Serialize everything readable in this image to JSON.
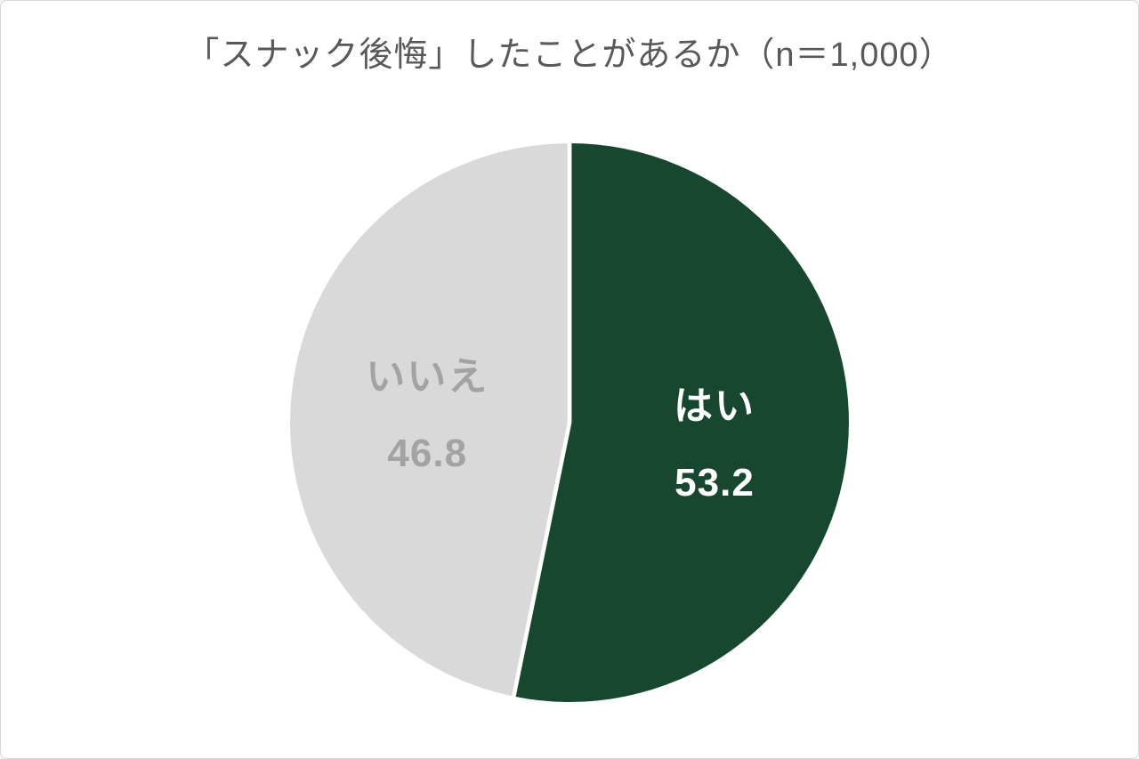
{
  "page": {
    "background": "#ffffff",
    "border_color": "#d9d9d9"
  },
  "chart_data": {
    "type": "pie",
    "title": "「スナック後悔」したことがあるか（n＝1,000）",
    "start_angle_deg": 0,
    "direction": "clockwise",
    "legend_position": "none",
    "data_labels": "inside",
    "total": 100,
    "slices": [
      {
        "label": "はい",
        "value": 53.2,
        "color": "#17472e",
        "text_color": "#ffffff"
      },
      {
        "label": "いいえ",
        "value": 46.8,
        "color": "#d9d9d9",
        "text_color": "#a3a3a3"
      }
    ],
    "title_color": "#595959"
  }
}
